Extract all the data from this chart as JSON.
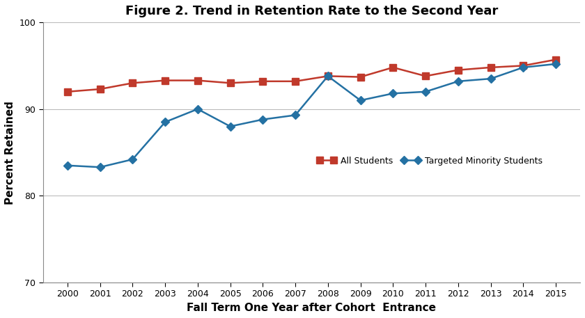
{
  "title": "Figure 2. Trend in Retention Rate to the Second Year",
  "xlabel": "Fall Term One Year after Cohort  Entrance",
  "ylabel": "Percent Retained",
  "years": [
    2000,
    2001,
    2002,
    2003,
    2004,
    2005,
    2006,
    2007,
    2008,
    2009,
    2010,
    2011,
    2012,
    2013,
    2014,
    2015
  ],
  "all_students": [
    92.0,
    92.3,
    93.0,
    93.3,
    93.3,
    93.0,
    93.2,
    93.2,
    93.8,
    93.7,
    94.8,
    93.8,
    94.5,
    94.8,
    95.0,
    95.7
  ],
  "minority_students": [
    83.5,
    83.3,
    84.2,
    88.5,
    90.0,
    88.0,
    88.8,
    89.3,
    93.8,
    91.0,
    91.8,
    92.0,
    93.2,
    93.5,
    94.8,
    95.2
  ],
  "all_color": "#c0392b",
  "minority_color": "#2471a3",
  "ylim": [
    70,
    100
  ],
  "yticks": [
    70,
    80,
    90,
    100
  ],
  "all_label": "All Students",
  "minority_label": "Targeted Minority Students",
  "title_fontsize": 13,
  "label_fontsize": 11,
  "tick_fontsize": 9,
  "legend_fontsize": 9,
  "marker_size": 7,
  "line_width": 1.8,
  "grid_color": "#bbbbbb",
  "spine_color": "#888888"
}
